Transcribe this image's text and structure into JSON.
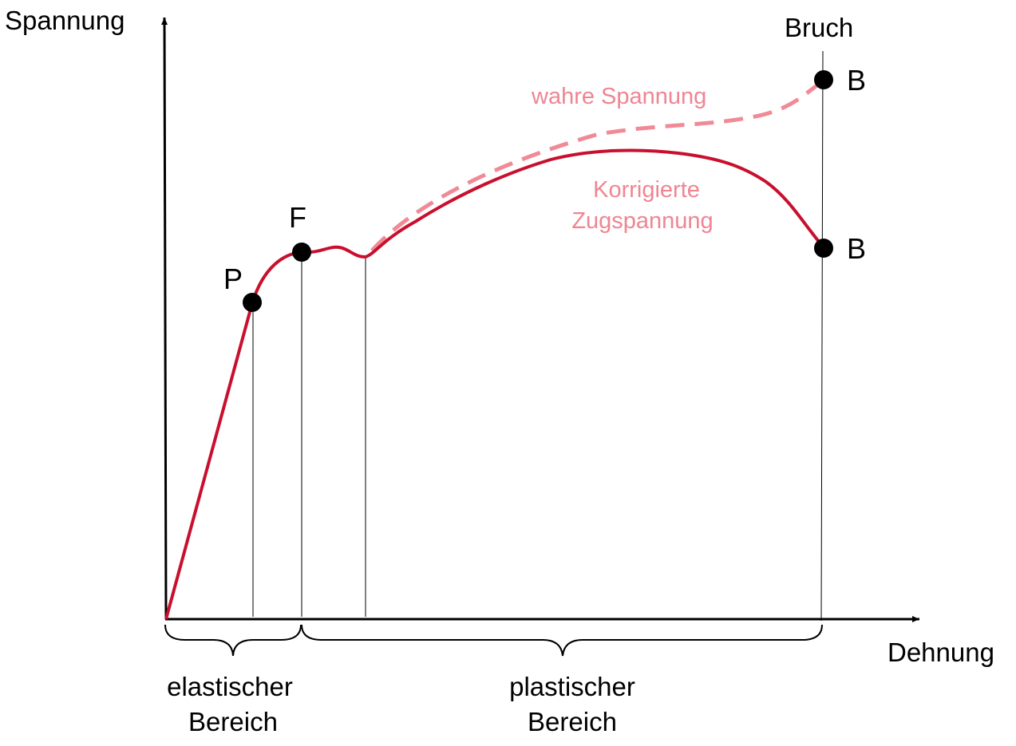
{
  "axes": {
    "y_label": "Spannung",
    "x_label": "Dehnung"
  },
  "points": {
    "p": "P",
    "f": "F",
    "b_true": "B",
    "b_eng": "B"
  },
  "fracture_label": "Bruch",
  "curves": {
    "true_stress_label": "wahre Spannung",
    "corrected_stress_label_line1": "Korrigierte",
    "corrected_stress_label_line2": "Zugspannung"
  },
  "regions": {
    "elastic_line1": "elastischer",
    "elastic_line2": "Bereich",
    "plastic_line1": "plastischer",
    "plastic_line2": "Bereich"
  },
  "colors": {
    "curve": "#c8102e",
    "true_stress": "#f08a96",
    "annotation": "#ef8593",
    "axis": "#000000"
  }
}
